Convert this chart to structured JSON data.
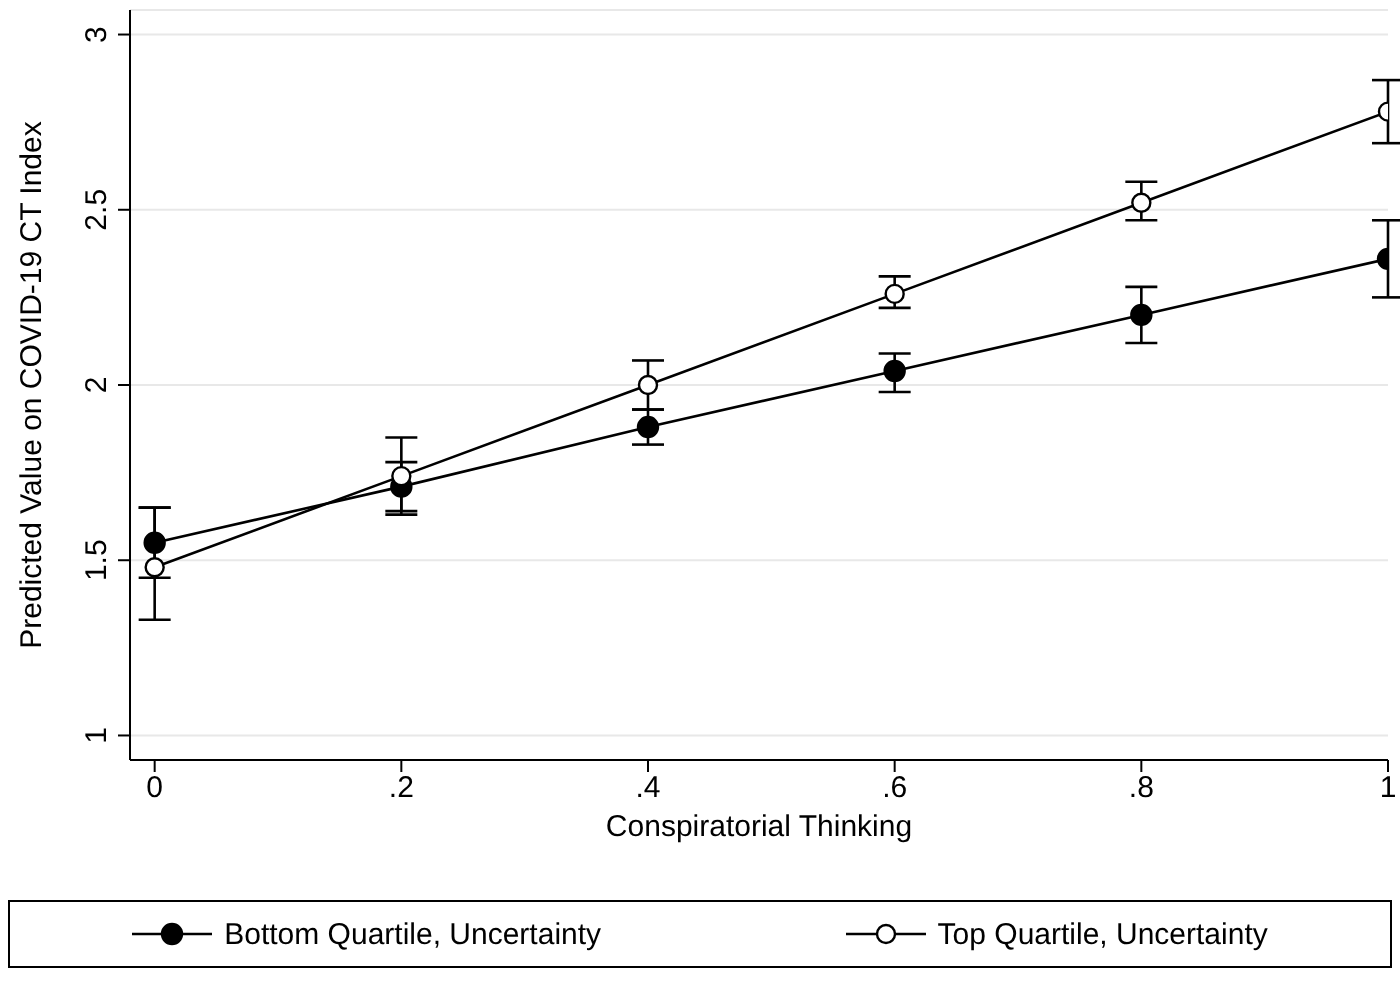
{
  "chart_data": {
    "type": "line",
    "xlabel": "Conspiratorial Thinking",
    "ylabel": "Predicted Value on COVID-19 CT Index",
    "x": [
      0,
      0.2,
      0.4,
      0.6,
      0.8,
      1
    ],
    "series": [
      {
        "name": "Bottom Quartile, Uncertainty",
        "color": "#000000",
        "values": [
          1.55,
          1.71,
          1.88,
          2.04,
          2.2,
          2.36
        ],
        "errors": [
          [
            1.45,
            1.65
          ],
          [
            1.63,
            1.78
          ],
          [
            1.83,
            1.93
          ],
          [
            1.98,
            2.09
          ],
          [
            2.12,
            2.28
          ],
          [
            2.25,
            2.47
          ]
        ]
      },
      {
        "name": "Top Quartile, Uncertainty",
        "color": "#000000",
        "values": [
          1.48,
          1.74,
          2.0,
          2.26,
          2.52,
          2.78
        ],
        "errors": [
          [
            1.33,
            1.65
          ],
          [
            1.64,
            1.85
          ],
          [
            1.93,
            2.07
          ],
          [
            2.22,
            2.31
          ],
          [
            2.47,
            2.58
          ],
          [
            2.69,
            2.87
          ]
        ]
      }
    ],
    "xlim": [
      -0.02,
      1.0
    ],
    "ylim": [
      0.93,
      3.07
    ],
    "xticks": [
      0,
      {
        "value": 0.2,
        "label": ".2"
      },
      {
        "value": 0.4,
        "label": ".4"
      },
      {
        "value": 0.6,
        "label": ".6"
      },
      {
        "value": 0.8,
        "label": ".8"
      },
      1
    ],
    "yticks": [
      1,
      1.5,
      2,
      2.5,
      3
    ],
    "grid": "y",
    "legend": "bottom",
    "marker": "circle",
    "line_style": "solid"
  }
}
